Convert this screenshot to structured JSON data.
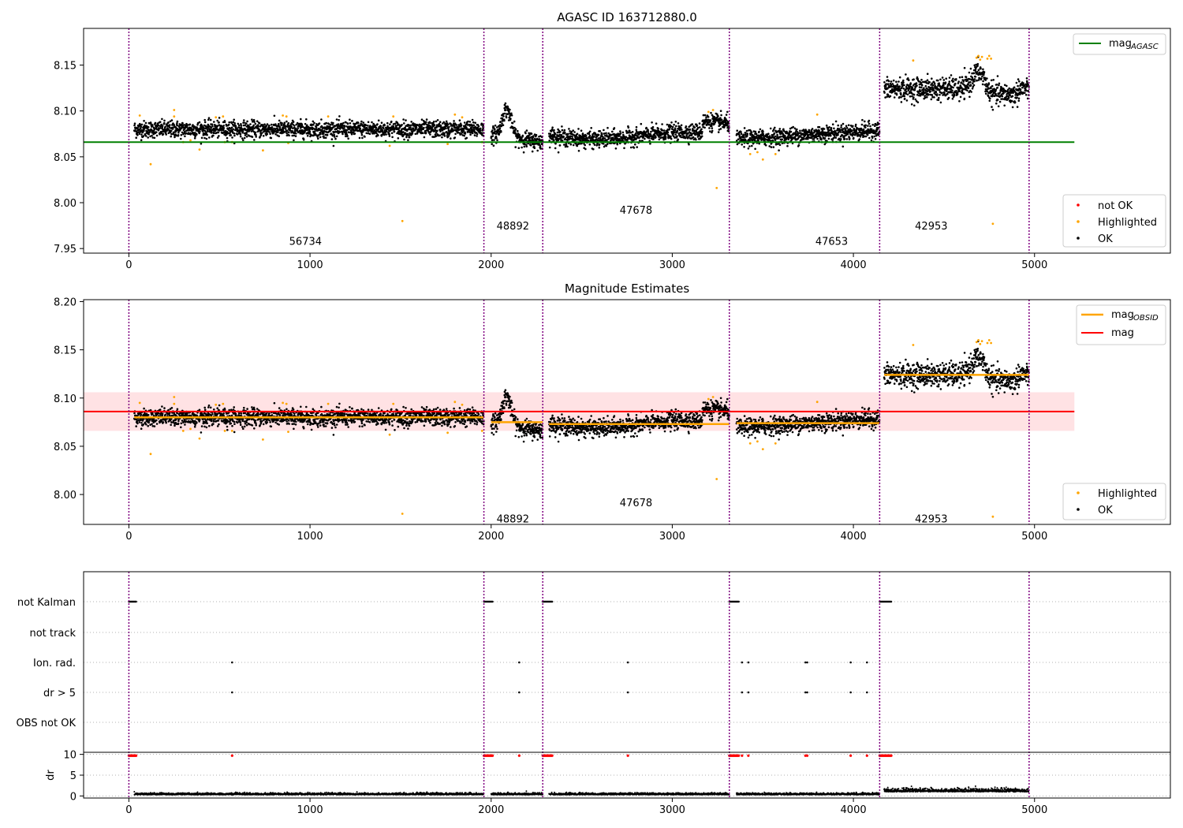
{
  "colors": {
    "ok": "#000000",
    "highlighted": "#ffa500",
    "not_ok": "#ff0000",
    "mag_agasc": "#008000",
    "mag": "#ff0000",
    "mag_obsid": "#ffa500",
    "band": "#ffb6bc",
    "obs_boundary": "#800080",
    "grid": "#b0b0b0"
  },
  "chart_data": [
    {
      "type": "scatter",
      "title": "AGASC ID 163712880.0",
      "xlim": [
        -250,
        5750
      ],
      "ylim": [
        7.945,
        8.19
      ],
      "xticks": [
        0,
        1000,
        2000,
        3000,
        4000,
        5000
      ],
      "yticks": [
        "7.95",
        "8.00",
        "8.05",
        "8.10",
        "8.15"
      ],
      "mag_agasc": 8.066,
      "mag_agasc_x_range": [
        -250,
        5220
      ],
      "observation_boundaries": [
        0,
        1960,
        2285,
        3315,
        4145,
        4970
      ],
      "observations": [
        {
          "obsid": "56734",
          "x_start": 30,
          "x_end": 1960,
          "level": 8.08,
          "label_x": 975,
          "label_y": 7.954
        },
        {
          "obsid": "48892",
          "x_start": 2000,
          "x_end": 2285,
          "level": 8.075,
          "label_x": 2120,
          "label_y": 7.971
        },
        {
          "obsid": "47678",
          "x_start": 2320,
          "x_end": 3315,
          "level": 8.073,
          "label_x": 2800,
          "label_y": 7.988
        },
        {
          "obsid": "47653",
          "x_start": 3355,
          "x_end": 4145,
          "level": 8.074,
          "label_x": 3880,
          "label_y": 7.954
        },
        {
          "obsid": "42953",
          "x_start": 4170,
          "x_end": 4970,
          "level": 8.124,
          "label_x": 4430,
          "label_y": 7.971
        }
      ],
      "legend_top": [
        {
          "label": "mag",
          "sub": "AGASC"
        }
      ],
      "legend_bottom": [
        {
          "label": "not OK"
        },
        {
          "label": "Highlighted"
        },
        {
          "label": "OK"
        }
      ]
    },
    {
      "type": "scatter",
      "title": "Magnitude Estimates",
      "xlim": [
        -250,
        5750
      ],
      "ylim": [
        7.969,
        8.202
      ],
      "xticks": [
        0,
        1000,
        2000,
        3000,
        4000,
        5000
      ],
      "yticks": [
        "8.00",
        "8.05",
        "8.10",
        "8.15",
        "8.20"
      ],
      "mag": 8.086,
      "mag_band": [
        8.066,
        8.106
      ],
      "mag_x_range": [
        -250,
        5220
      ],
      "legend_top": [
        {
          "label": "mag",
          "sub": "OBSID"
        },
        {
          "label": "mag"
        }
      ],
      "legend_bottom": [
        {
          "label": "Highlighted"
        },
        {
          "label": "OK"
        }
      ]
    },
    {
      "type": "scatter",
      "flags": [
        "not Kalman",
        "not track",
        "Ion. rad.",
        "dr > 5",
        "OBS not OK"
      ],
      "flag_events": {
        "not Kalman": [
          [
            0,
            40
          ],
          [
            1960,
            2010
          ],
          [
            2285,
            2340
          ],
          [
            3315,
            3370
          ],
          [
            4145,
            4210
          ]
        ],
        "Ion. rad.": [
          570,
          2155,
          2755,
          3385,
          3420,
          3735,
          3745,
          3985,
          4075
        ],
        "dr > 5": [
          570,
          2155,
          2755,
          3385,
          3420,
          3735,
          3745,
          3985,
          4075
        ]
      },
      "dr_ylabel": "dr",
      "dr_yticks": [
        "0",
        "5",
        "10"
      ],
      "dr_ylim": [
        -0.5,
        10.5
      ],
      "xticks": [
        0,
        1000,
        2000,
        3000,
        4000,
        5000
      ]
    }
  ]
}
